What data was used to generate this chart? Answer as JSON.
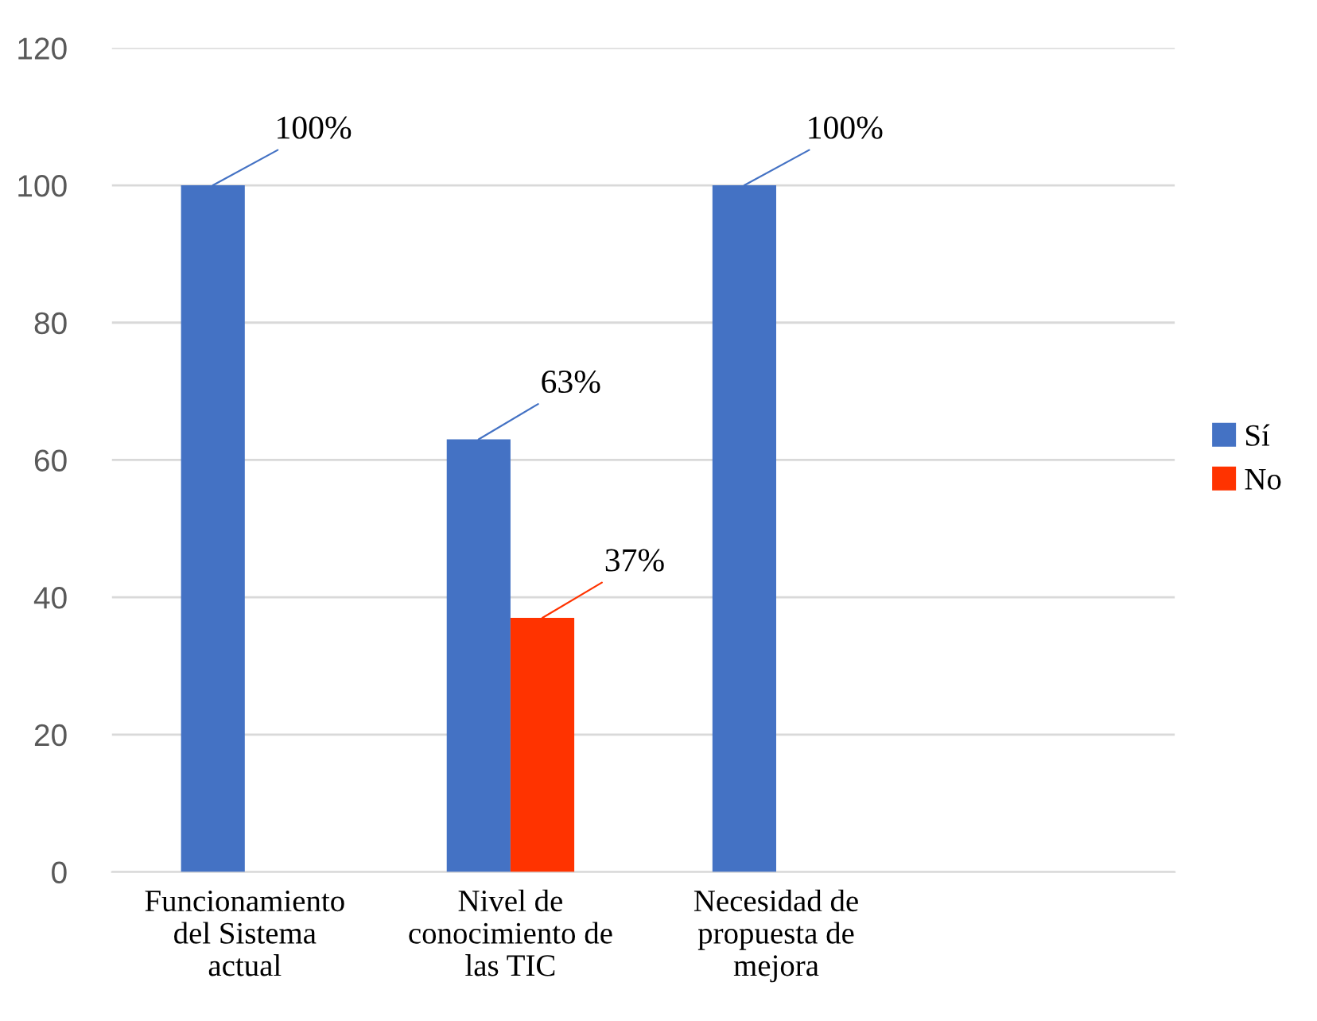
{
  "chart_data": {
    "type": "bar",
    "categories": [
      "Funcionamiento\ndel Sistema\nactual",
      "Nivel de\nconocimiento de\nlas TIC",
      "Necesidad de\npropuesta de\nmejora",
      null
    ],
    "series": [
      {
        "name": "Sí",
        "color": "#4472c4",
        "values": [
          100,
          63,
          100,
          null
        ],
        "value_labels": [
          "100%",
          "63%",
          "100%",
          null
        ]
      },
      {
        "name": "No",
        "color": "#ff3300",
        "values": [
          null,
          37,
          null,
          null
        ],
        "value_labels": [
          null,
          "37%",
          null,
          null
        ]
      }
    ],
    "ylim": [
      0,
      120
    ],
    "yticks": [
      0,
      20,
      40,
      60,
      80,
      100,
      120
    ],
    "grid": "y",
    "legend": "right"
  }
}
